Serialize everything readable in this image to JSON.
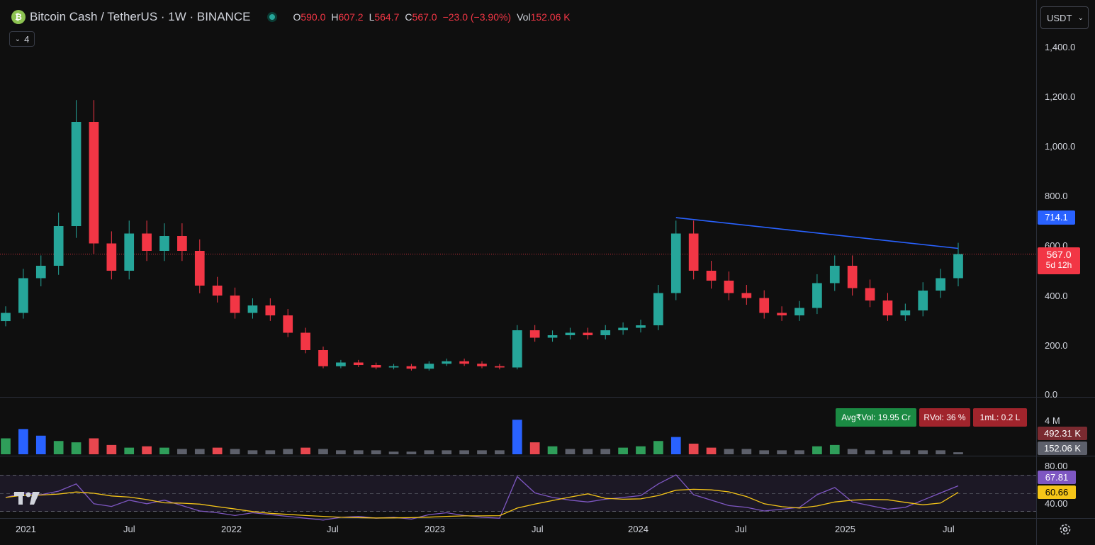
{
  "header": {
    "symbol_icon": "bitcoin-cash-icon",
    "title": "Bitcoin Cash / TetherUS · 1W · BINANCE",
    "ohlc": {
      "o_label": "O",
      "o": "590.0",
      "h_label": "H",
      "h": "607.2",
      "l_label": "L",
      "l": "564.7",
      "c_label": "C",
      "c": "567.0",
      "change": "−23.0 (−3.90%)",
      "vol_label": "Vol",
      "vol": "152.06 K"
    },
    "indicator_count": "4",
    "currency": "USDT"
  },
  "colors": {
    "up": "#26a69a",
    "down": "#f23645",
    "vol_up": "#2f9e5a",
    "vol_down": "#e8474f",
    "vol_blue": "#2962ff",
    "vol_neutral": "#5d606b",
    "trend": "#2962ff",
    "rsi": "#7e57c2",
    "rsi_ma": "#f5c518",
    "bg": "#0f0f0f"
  },
  "price_axis": {
    "ticks": [
      "1,400.0",
      "1,200.0",
      "1,000.0",
      "800.0",
      "600.0",
      "400.0",
      "200.0",
      "0.0"
    ]
  },
  "price_labels": {
    "trendline_value": "714.1",
    "last_price": "567.0",
    "countdown": "5d 12h"
  },
  "volume_pane": {
    "tick": "4 M",
    "avg_vol": "Avg₹Vol: 19.95 Cr",
    "rvol": "RVol: 36 %",
    "ml": "1mL: 0.2 L",
    "label_1": "492.31 K",
    "label_2": "152.06 K"
  },
  "rsi_pane": {
    "ticks": [
      "80.00",
      "40.00"
    ],
    "rsi_value": "67.81",
    "rsi_ma_value": "60.66"
  },
  "time_axis": {
    "labels": [
      "2021",
      "Jul",
      "2022",
      "Jul",
      "2023",
      "Jul",
      "2024",
      "Jul",
      "2025",
      "Jul"
    ]
  },
  "chart_data": {
    "type": "candlestick",
    "interval": "1W",
    "x": [
      "2021-01",
      "2021-02",
      "2021-03",
      "2021-04",
      "2021-05",
      "2021-06",
      "2021-07",
      "2021-08",
      "2021-09",
      "2021-10",
      "2021-11",
      "2021-12",
      "2022-01",
      "2022-02",
      "2022-03",
      "2022-04",
      "2022-05",
      "2022-06",
      "2022-07",
      "2022-08",
      "2022-09",
      "2022-10",
      "2022-11",
      "2022-12",
      "2023-01",
      "2023-02",
      "2023-03",
      "2023-04",
      "2023-05",
      "2023-06",
      "2023-07",
      "2023-08",
      "2023-09",
      "2023-10",
      "2023-11",
      "2023-12",
      "2024-01",
      "2024-02",
      "2024-03",
      "2024-04",
      "2024-05",
      "2024-06",
      "2024-07",
      "2024-08",
      "2024-09",
      "2024-10",
      "2024-11",
      "2024-12",
      "2025-01",
      "2025-02",
      "2025-03",
      "2025-04",
      "2025-05",
      "2025-06",
      "2025-07"
    ],
    "close": [
      330,
      470,
      520,
      680,
      1100,
      610,
      500,
      650,
      580,
      640,
      580,
      440,
      400,
      330,
      360,
      320,
      250,
      180,
      115,
      130,
      120,
      110,
      115,
      105,
      125,
      135,
      125,
      115,
      110,
      260,
      230,
      240,
      250,
      240,
      260,
      270,
      280,
      410,
      650,
      500,
      460,
      410,
      390,
      330,
      320,
      350,
      450,
      520,
      430,
      380,
      320,
      340,
      420,
      470,
      567
    ],
    "ylim": [
      0,
      1400
    ],
    "trendline": {
      "from": {
        "x": "2024-03",
        "y": 714.1
      },
      "to": {
        "x": "2025-07",
        "y": 590
      }
    },
    "last_price": 567.0,
    "volume": [
      1.2,
      1.9,
      1.4,
      1.0,
      0.9,
      1.2,
      0.7,
      0.5,
      0.6,
      0.5,
      0.4,
      0.4,
      0.5,
      0.4,
      0.3,
      0.3,
      0.4,
      0.5,
      0.4,
      0.3,
      0.3,
      0.3,
      0.2,
      0.2,
      0.3,
      0.3,
      0.3,
      0.3,
      0.3,
      2.6,
      0.9,
      0.6,
      0.4,
      0.4,
      0.4,
      0.5,
      0.6,
      1.0,
      1.3,
      0.8,
      0.5,
      0.4,
      0.4,
      0.3,
      0.3,
      0.3,
      0.6,
      0.7,
      0.4,
      0.3,
      0.3,
      0.3,
      0.3,
      0.3,
      0.152
    ],
    "volume_unit": "M",
    "rsi": [
      55,
      60,
      58,
      62,
      70,
      48,
      45,
      52,
      48,
      52,
      46,
      40,
      38,
      35,
      38,
      36,
      34,
      32,
      30,
      33,
      34,
      32,
      33,
      31,
      36,
      38,
      35,
      33,
      32,
      78,
      60,
      55,
      52,
      50,
      53,
      55,
      57,
      70,
      80,
      58,
      52,
      46,
      44,
      40,
      42,
      44,
      58,
      66,
      50,
      46,
      42,
      44,
      52,
      60,
      67.81
    ],
    "rsi_ma_last": 60.66
  }
}
